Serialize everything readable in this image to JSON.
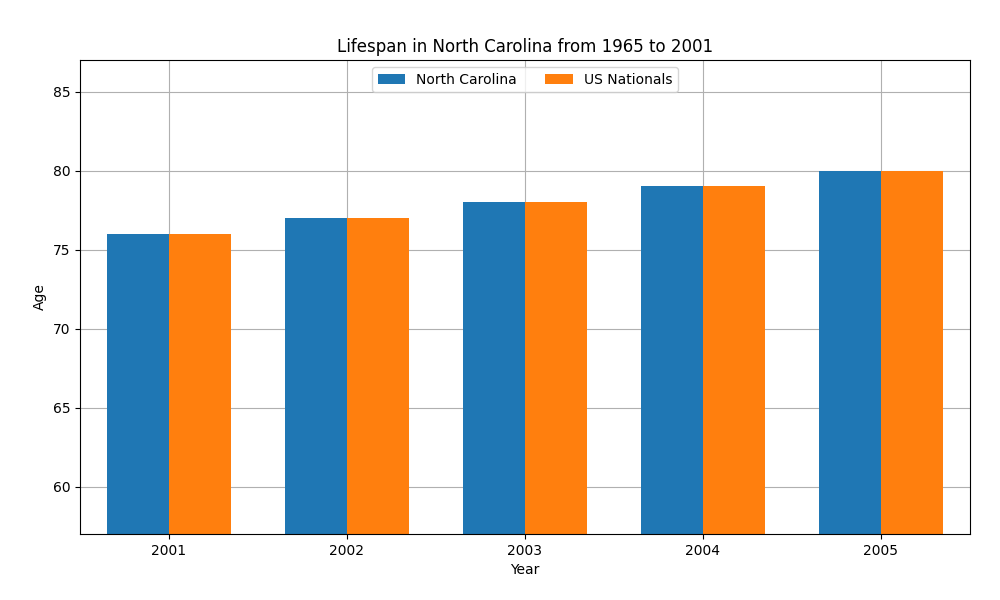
{
  "chart_data": {
    "type": "bar",
    "title": "Lifespan in North Carolina from 1965 to 2001",
    "x_label": "Year",
    "y_label": "Age",
    "categories": [
      "2001",
      "2002",
      "2003",
      "2004",
      "2005"
    ],
    "series": [
      {
        "name": "North Carolina",
        "values": [
          76,
          77,
          78,
          79,
          80
        ]
      },
      {
        "name": "US Nationals",
        "values": [
          76,
          77,
          78,
          79,
          80
        ]
      }
    ],
    "ylim": [
      57,
      87
    ],
    "yticks": [
      60,
      65,
      70,
      75,
      80,
      85
    ],
    "grid": true,
    "legend": "upper center"
  }
}
